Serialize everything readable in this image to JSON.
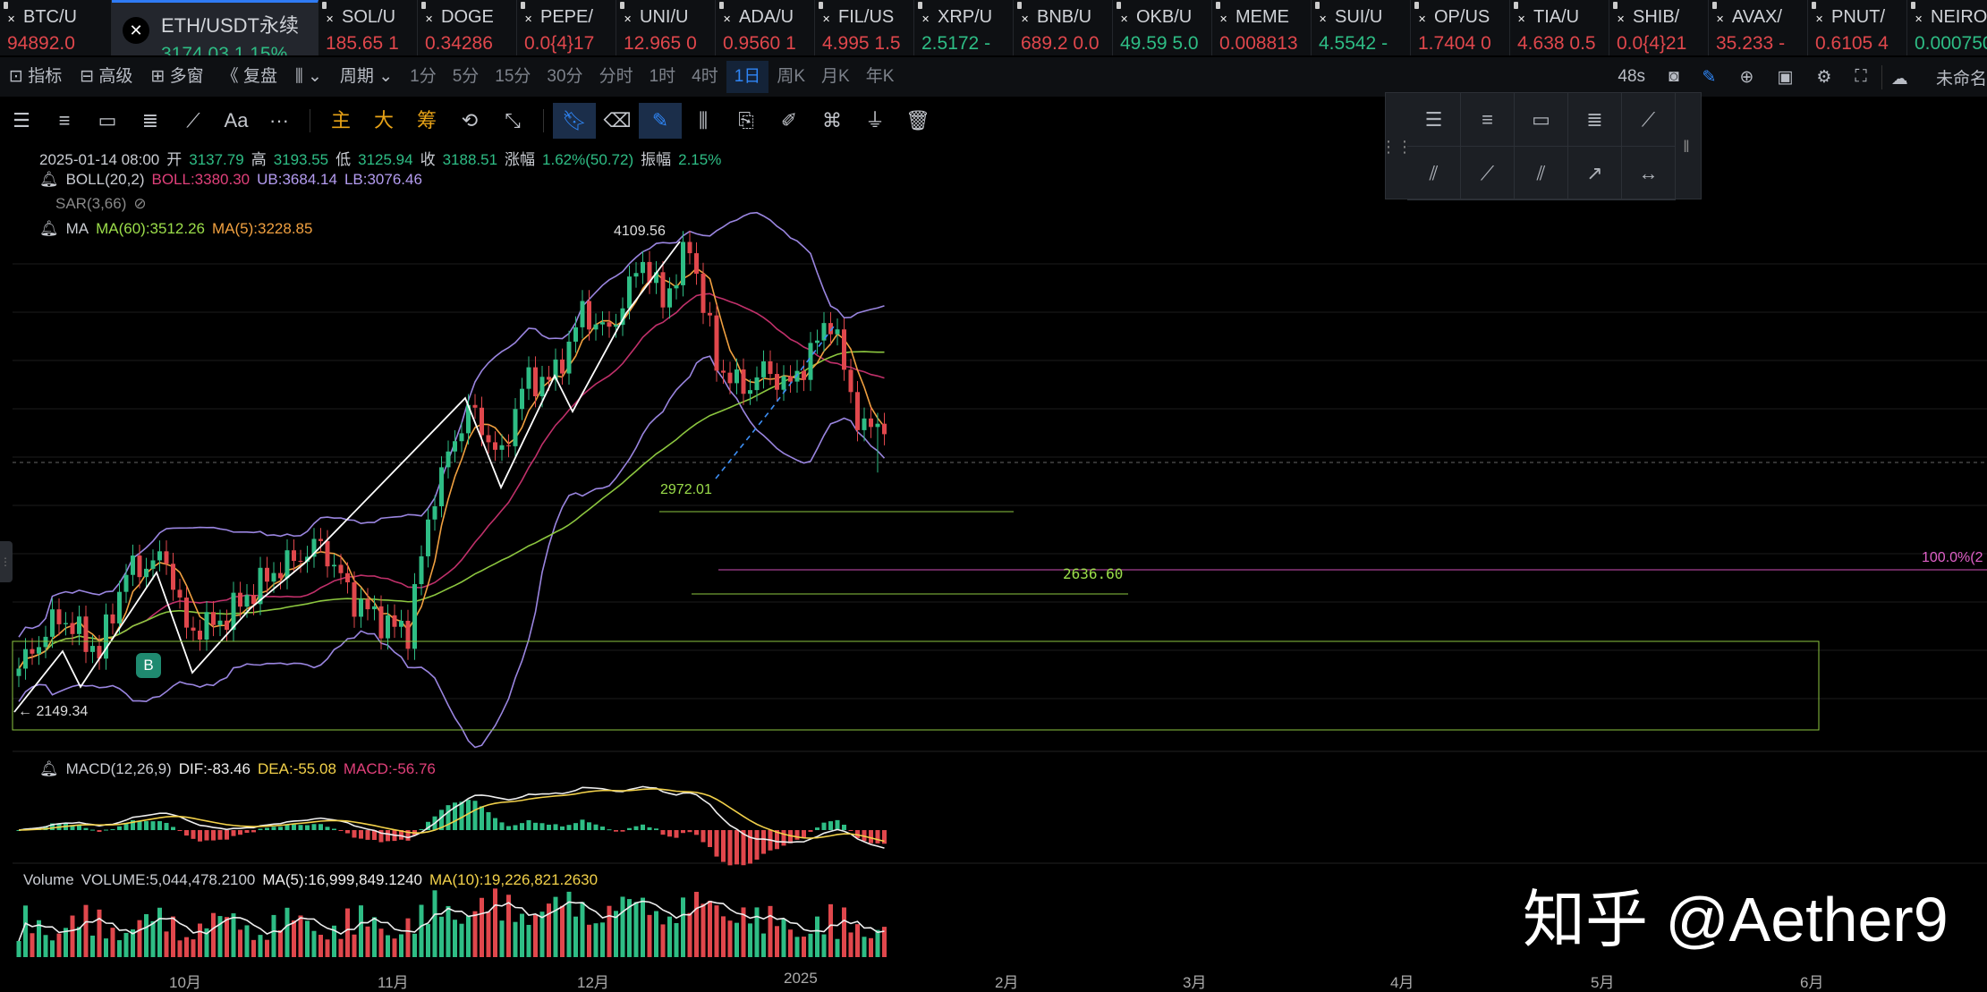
{
  "tickers": [
    {
      "sym": "BTC/U",
      "px": "94892.0",
      "c": "red"
    },
    {
      "sym": "ETH/USDT永续",
      "px": "3174.03 1.15%",
      "c": "green"
    },
    {
      "sym": "SOL/U",
      "px": "185.65 1",
      "c": "red"
    },
    {
      "sym": "DOGE",
      "px": "0.34286",
      "c": "red"
    },
    {
      "sym": "PEPE/",
      "px": "0.0{4}17",
      "c": "red"
    },
    {
      "sym": "UNI/U",
      "px": "12.965 0",
      "c": "red"
    },
    {
      "sym": "ADA/U",
      "px": "0.9560 1",
      "c": "red"
    },
    {
      "sym": "FIL/US",
      "px": "4.995 1.5",
      "c": "red"
    },
    {
      "sym": "XRP/U",
      "px": "2.5172 -",
      "c": "green"
    },
    {
      "sym": "BNB/U",
      "px": "689.2 0.0",
      "c": "red"
    },
    {
      "sym": "OKB/U",
      "px": "49.59 5.0",
      "c": "green"
    },
    {
      "sym": "MEME",
      "px": "0.008813",
      "c": "red"
    },
    {
      "sym": "SUI/U",
      "px": "4.5542 -",
      "c": "green"
    },
    {
      "sym": "OP/US",
      "px": "1.7404 0",
      "c": "red"
    },
    {
      "sym": "TIA/U",
      "px": "4.638 0.5",
      "c": "red"
    },
    {
      "sym": "SHIB/",
      "px": "0.0{4}21",
      "c": "red"
    },
    {
      "sym": "AVAX/",
      "px": "35.233 -",
      "c": "red"
    },
    {
      "sym": "PNUT/",
      "px": "0.6105 4",
      "c": "red"
    },
    {
      "sym": "NEIRO",
      "px": "0.000750",
      "c": "green"
    }
  ],
  "toolbar": {
    "indicators": "指标",
    "advanced": "高级",
    "multi_window": "多窗",
    "replay": "复盘",
    "period": "周期",
    "periods": [
      "1分",
      "5分",
      "15分",
      "30分",
      "分时",
      "1时",
      "4时",
      "1日",
      "周K",
      "月K",
      "年K"
    ],
    "active_period": "1日",
    "countdown": "48s",
    "layout_name": "未命名"
  },
  "drawing_tools": {
    "text_tool": "Aa",
    "more": "···",
    "main": "主",
    "big": "大",
    "chips": "筹"
  },
  "legend": {
    "ohlc": {
      "date": "2025-01-14 08:00",
      "open_l": "开",
      "open": "3137.79",
      "high_l": "高",
      "high": "3193.55",
      "low_l": "低",
      "low": "3125.94",
      "close_l": "收",
      "close": "3188.51",
      "chg_l": "涨幅",
      "chg": "1.62%(50.72)",
      "amp_l": "振幅",
      "amp": "2.15%"
    },
    "boll": {
      "name": "BOLL(20,2)",
      "mid": "BOLL:3380.30",
      "ub": "UB:3684.14",
      "lb": "LB:3076.46"
    },
    "sar": {
      "name": "SAR(3,66)"
    },
    "ma": {
      "name": "MA",
      "ma60": "MA(60):3512.26",
      "ma5": "MA(5):3228.85"
    },
    "macd": {
      "name": "MACD(12,26,9)",
      "dif": "DIF:-83.46",
      "dea": "DEA:-55.08",
      "macd": "MACD:-56.76"
    },
    "volume": {
      "name": "Volume",
      "vol": "VOLUME:5,044,478.2100",
      "ma5": "MA(5):16,999,849.1240",
      "ma10": "MA(10):19,226,821.2630"
    }
  },
  "annotations": {
    "high": "4109.56",
    "low_mark": "2972.01",
    "level": "2636.60",
    "fib": "100.0%(2",
    "start": "2149.34",
    "buy": "B"
  },
  "x_axis": [
    "10月",
    "11月",
    "12月",
    "2025",
    "2月",
    "3月",
    "4月",
    "5月",
    "6月"
  ],
  "watermark": "知乎 @Aether9",
  "colors": {
    "up": "#2ebd85",
    "down": "#e0474c",
    "accent": "#2f86f6"
  }
}
